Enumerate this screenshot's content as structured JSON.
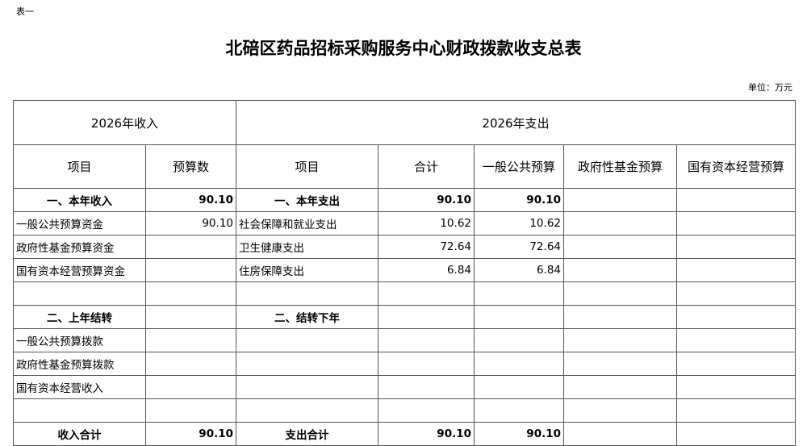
{
  "label": "表一",
  "title": "北碚区药品招标采购服务中心财政拨款收支总表",
  "unit": "单位：万元",
  "header": {
    "income": "2026年收入",
    "expense": "2026年支出",
    "item": "项目",
    "budget": "预算数",
    "item2": "项目",
    "total": "合计",
    "general": "一般公共预算",
    "fund": "政府性基金预算",
    "state": "国有资本经营预算"
  },
  "rows": [
    {
      "in": "一、本年收入",
      "inv": "90.10",
      "ex": "一、本年支出",
      "t": "90.10",
      "g": "90.10",
      "f": "",
      "s": "",
      "bold": true
    },
    {
      "in": "一般公共预算资金",
      "inv": "90.10",
      "ex": "社会保障和就业支出",
      "t": "10.62",
      "g": "10.62",
      "f": "",
      "s": ""
    },
    {
      "in": "政府性基金预算资金",
      "inv": "",
      "ex": "卫生健康支出",
      "t": "72.64",
      "g": "72.64",
      "f": "",
      "s": ""
    },
    {
      "in": "国有资本经营预算资金",
      "inv": "",
      "ex": "住房保障支出",
      "t": "6.84",
      "g": "6.84",
      "f": "",
      "s": ""
    },
    {
      "in": "",
      "inv": "",
      "ex": "",
      "t": "",
      "g": "",
      "f": "",
      "s": ""
    },
    {
      "in": "二、上年结转",
      "inv": "",
      "ex": "二、结转下年",
      "t": "",
      "g": "",
      "f": "",
      "s": "",
      "bold": true
    },
    {
      "in": "一般公共预算拨款",
      "inv": "",
      "ex": "",
      "t": "",
      "g": "",
      "f": "",
      "s": ""
    },
    {
      "in": "政府性基金预算拨款",
      "inv": "",
      "ex": "",
      "t": "",
      "g": "",
      "f": "",
      "s": ""
    },
    {
      "in": "国有资本经营收入",
      "inv": "",
      "ex": "",
      "t": "",
      "g": "",
      "f": "",
      "s": ""
    },
    {
      "in": "",
      "inv": "",
      "ex": "",
      "t": "",
      "g": "",
      "f": "",
      "s": ""
    },
    {
      "in": "收入合计",
      "inv": "90.10",
      "ex": "支出合计",
      "t": "90.10",
      "g": "90.10",
      "f": "",
      "s": "",
      "bold": true
    }
  ]
}
